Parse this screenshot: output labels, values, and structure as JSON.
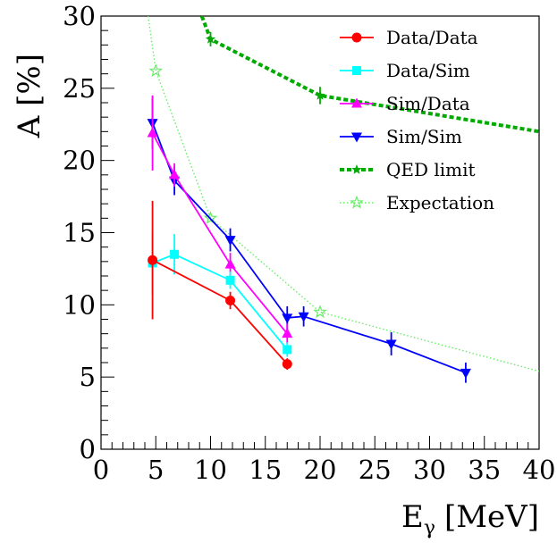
{
  "chart_data": {
    "type": "line",
    "title": "",
    "xlabel_main": "E",
    "xlabel_sub": "γ",
    "xlabel_unit": "[MeV]",
    "ylabel": "A [%]",
    "xlim": [
      0,
      40
    ],
    "ylim": [
      0,
      30
    ],
    "xticks": [
      0,
      5,
      10,
      15,
      20,
      25,
      30,
      35,
      40
    ],
    "yticks": [
      0,
      5,
      10,
      15,
      20,
      25,
      30
    ],
    "grid": false,
    "legend_position": "top-right",
    "series": [
      {
        "name": "Data/Data",
        "color": "#ff0000",
        "marker": "circle",
        "line_style": "solid",
        "x": [
          4.7,
          11.8,
          17.0
        ],
        "y": [
          13.1,
          10.3,
          5.9
        ],
        "y_err": [
          4.1,
          0.6,
          0.4
        ]
      },
      {
        "name": "Data/Sim",
        "color": "#00ffff",
        "marker": "square",
        "line_style": "solid",
        "x": [
          4.7,
          6.7,
          11.8,
          17.0
        ],
        "y": [
          12.9,
          13.5,
          11.7,
          6.9
        ],
        "y_err": [
          2.2,
          1.4,
          0.6,
          0.5
        ]
      },
      {
        "name": "Sim/Data",
        "color": "#ff00ff",
        "marker": "triangle-up",
        "line_style": "solid",
        "x": [
          4.7,
          6.7,
          11.8,
          17.0
        ],
        "y": [
          21.9,
          19.0,
          12.8,
          8.0
        ],
        "y_err": [
          2.6,
          0.8,
          0.8,
          0.7
        ]
      },
      {
        "name": "Sim/Sim",
        "color": "#0000ff",
        "marker": "triangle-down",
        "line_style": "solid",
        "x": [
          4.7,
          6.7,
          11.8,
          17.0,
          18.5,
          26.5,
          33.3
        ],
        "y": [
          22.6,
          18.6,
          14.5,
          9.1,
          9.2,
          7.3,
          5.3
        ],
        "y_err": [
          1.8,
          1.0,
          0.8,
          0.8,
          0.7,
          0.8,
          0.7
        ]
      },
      {
        "name": "QED limit",
        "color": "#00aa00",
        "marker": "star",
        "line_style": "dashed",
        "x": [
          9.2,
          10.0,
          20.0,
          40.0
        ],
        "y": [
          30.0,
          28.4,
          24.5,
          22.0
        ],
        "y_err": [
          0,
          0.5,
          0.6,
          0
        ],
        "markers_at": [
          false,
          true,
          true,
          false
        ]
      },
      {
        "name": "Expectation",
        "color": "#66ee66",
        "marker": "open-star",
        "line_style": "dotted",
        "x": [
          4.3,
          5.0,
          10.0,
          20.0,
          40.0
        ],
        "y": [
          30.0,
          26.2,
          16.0,
          9.5,
          5.4
        ],
        "y_err": [
          0,
          0,
          0,
          0,
          0
        ],
        "markers_at": [
          false,
          true,
          true,
          true,
          false
        ]
      }
    ]
  }
}
